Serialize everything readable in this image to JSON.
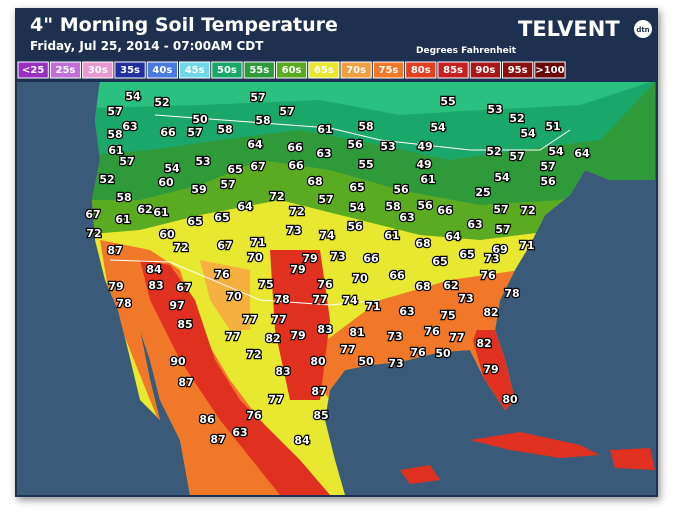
{
  "header": {
    "title": "4\" Morning Soil Temperature",
    "subtitle": "Friday, Jul 25, 2014 - 07:00AM CDT",
    "brand": "TELVENT",
    "brand_badge": "dtn",
    "units": "Degrees Fahrenheit"
  },
  "legend": [
    {
      "label": "<25",
      "color": "#9a2fc4"
    },
    {
      "label": "25s",
      "color": "#c070d8"
    },
    {
      "label": "30s",
      "color": "#e89ad0"
    },
    {
      "label": "35s",
      "color": "#2030a0"
    },
    {
      "label": "40s",
      "color": "#4a7ae0"
    },
    {
      "label": "45s",
      "color": "#6ed8e8"
    },
    {
      "label": "50s",
      "color": "#1aa86a"
    },
    {
      "label": "55s",
      "color": "#2e9a3a"
    },
    {
      "label": "60s",
      "color": "#5aaa22"
    },
    {
      "label": "65s",
      "color": "#e8e830"
    },
    {
      "label": "70s",
      "color": "#f0a040"
    },
    {
      "label": "75s",
      "color": "#f07828"
    },
    {
      "label": "80s",
      "color": "#e04020"
    },
    {
      "label": "85s",
      "color": "#c82020"
    },
    {
      "label": "90s",
      "color": "#a81818"
    },
    {
      "label": "95s",
      "color": "#8a1010"
    },
    {
      "label": ">100",
      "color": "#6a0808"
    }
  ],
  "readings": [
    54,
    52,
    57,
    55,
    53,
    52,
    51,
    57,
    50,
    58,
    57,
    63,
    58,
    66,
    57,
    58,
    61,
    58,
    54,
    54,
    61,
    64,
    66,
    56,
    53,
    49,
    52,
    57,
    54,
    64,
    57,
    54,
    53,
    65,
    67,
    66,
    63,
    55,
    49,
    57,
    52,
    60,
    59,
    57,
    68,
    65,
    56,
    61,
    54,
    56,
    58,
    72,
    57,
    54,
    58,
    56,
    25,
    57,
    72,
    64,
    67,
    62,
    61,
    65,
    65,
    72,
    63,
    66,
    61,
    73,
    74,
    56,
    64,
    63,
    57,
    72,
    60,
    72,
    67,
    71,
    61,
    68,
    69,
    71,
    87,
    70,
    79,
    79,
    73,
    66,
    65,
    65,
    73,
    84,
    76,
    70,
    66,
    76,
    79,
    83,
    67,
    75,
    76,
    68,
    62,
    78,
    78,
    97,
    70,
    78,
    77,
    74,
    71,
    73,
    85,
    77,
    77,
    82,
    63,
    75,
    77,
    82,
    79,
    83,
    81,
    73,
    76,
    77,
    90,
    72,
    80,
    77,
    50,
    73,
    76,
    50,
    82,
    87,
    83,
    79,
    87,
    77,
    80,
    86,
    76,
    85,
    87,
    63,
    84
  ]
}
